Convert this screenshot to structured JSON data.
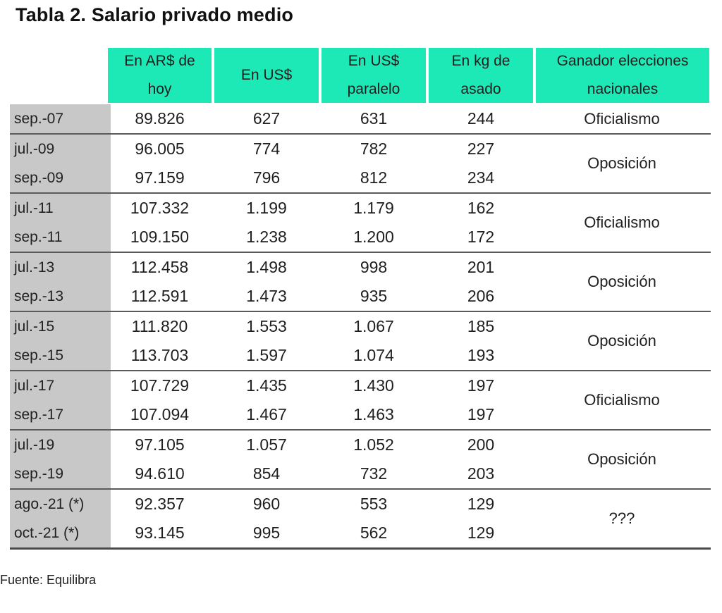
{
  "title": "Tabla 2. Salario privado medio",
  "headers": [
    "En AR$ de\nhoy",
    "En US$",
    "En US$\nparalelo",
    "En kg de\nasado",
    "Ganador elecciones\nnacionales"
  ],
  "groups": [
    {
      "winner": "Oficialismo",
      "rows": [
        {
          "label": "sep.-07",
          "ars": "89.826",
          "usd": "627",
          "usd_par": "631",
          "kg": "244"
        }
      ]
    },
    {
      "winner": "Oposición",
      "rows": [
        {
          "label": "jul.-09",
          "ars": "96.005",
          "usd": "774",
          "usd_par": "782",
          "kg": "227"
        },
        {
          "label": "sep.-09",
          "ars": "97.159",
          "usd": "796",
          "usd_par": "812",
          "kg": "234"
        }
      ]
    },
    {
      "winner": "Oficialismo",
      "rows": [
        {
          "label": "jul.-11",
          "ars": "107.332",
          "usd": "1.199",
          "usd_par": "1.179",
          "kg": "162"
        },
        {
          "label": "sep.-11",
          "ars": "109.150",
          "usd": "1.238",
          "usd_par": "1.200",
          "kg": "172"
        }
      ]
    },
    {
      "winner": "Oposición",
      "rows": [
        {
          "label": "jul.-13",
          "ars": "112.458",
          "usd": "1.498",
          "usd_par": "998",
          "kg": "201"
        },
        {
          "label": "sep.-13",
          "ars": "112.591",
          "usd": "1.473",
          "usd_par": "935",
          "kg": "206"
        }
      ]
    },
    {
      "winner": "Oposición",
      "rows": [
        {
          "label": "jul.-15",
          "ars": "111.820",
          "usd": "1.553",
          "usd_par": "1.067",
          "kg": "185"
        },
        {
          "label": "sep.-15",
          "ars": "113.703",
          "usd": "1.597",
          "usd_par": "1.074",
          "kg": "193"
        }
      ]
    },
    {
      "winner": "Oficialismo",
      "rows": [
        {
          "label": "jul.-17",
          "ars": "107.729",
          "usd": "1.435",
          "usd_par": "1.430",
          "kg": "197"
        },
        {
          "label": "sep.-17",
          "ars": "107.094",
          "usd": "1.467",
          "usd_par": "1.463",
          "kg": "197"
        }
      ]
    },
    {
      "winner": "Oposición",
      "rows": [
        {
          "label": "jul.-19",
          "ars": "97.105",
          "usd": "1.057",
          "usd_par": "1.052",
          "kg": "200"
        },
        {
          "label": "sep.-19",
          "ars": "94.610",
          "usd": "854",
          "usd_par": "732",
          "kg": "203"
        }
      ]
    },
    {
      "winner": "???",
      "rows": [
        {
          "label": "ago.-21 (*)",
          "ars": "92.357",
          "usd": "960",
          "usd_par": "553",
          "kg": "129"
        },
        {
          "label": "oct.-21 (*)",
          "ars": "93.145",
          "usd": "995",
          "usd_par": "562",
          "kg": "129"
        }
      ]
    }
  ],
  "source": "Fuente: Equilibra",
  "colors": {
    "header_bg": "#1de9b6",
    "label_bg": "#c8c8c8",
    "divider": "#5a5a5a"
  }
}
